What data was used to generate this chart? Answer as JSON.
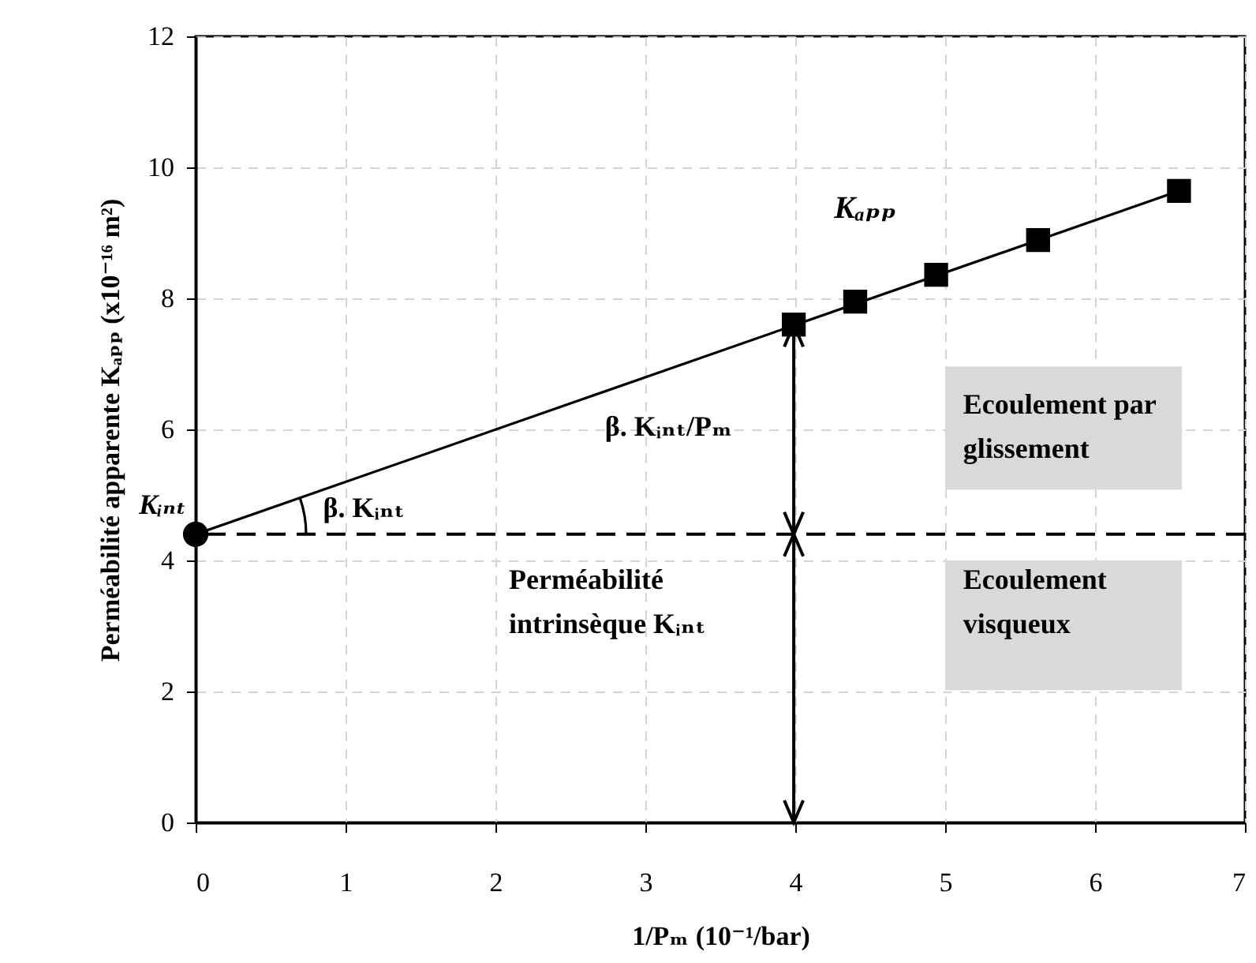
{
  "chart_data": {
    "type": "scatter",
    "xlabel": "1/Pₘ (10⁻¹/bar)",
    "ylabel": "Perméabilité apparente Kₐₚₚ (x10⁻¹⁶ m²)",
    "xlim": [
      0,
      7
    ],
    "xticks": [
      0,
      1,
      2,
      3,
      4,
      5,
      6,
      7
    ],
    "ylim": [
      0,
      12
    ],
    "yticks": [
      0,
      2,
      4,
      6,
      8,
      10,
      12
    ],
    "grid": true,
    "legend": false,
    "series": [
      {
        "type": "line",
        "x": [
          0,
          6.56
        ],
        "values": [
          4.4,
          9.64
        ],
        "color": "#000000",
        "marker": "none",
        "line_style": "solid"
      },
      {
        "name": "Kₐₚₚ",
        "x": [
          3.99,
          4.4,
          4.94,
          5.62,
          6.56
        ],
        "values": [
          7.6,
          7.95,
          8.36,
          8.89,
          9.64
        ],
        "color": "#000000",
        "marker": "square"
      },
      {
        "x": [
          0
        ],
        "values": [
          4.4
        ],
        "color": "#000000",
        "marker": "circle"
      }
    ],
    "ref_lines": [
      {
        "axis": "y",
        "value": 4.4,
        "color": "#000000",
        "line_style": "dashed"
      }
    ],
    "annotations": [
      {
        "text": "Kᵢₙₜ",
        "x": 0,
        "y": 4.4
      },
      "β. Kᵢₙₜ",
      "β. Kᵢₙₜ/Pₘ",
      "Ecoulement par\nglissement",
      "Perméabilité\nintrinsèque Kᵢₙₜ",
      "Ecoulement\nvisqueux"
    ]
  }
}
